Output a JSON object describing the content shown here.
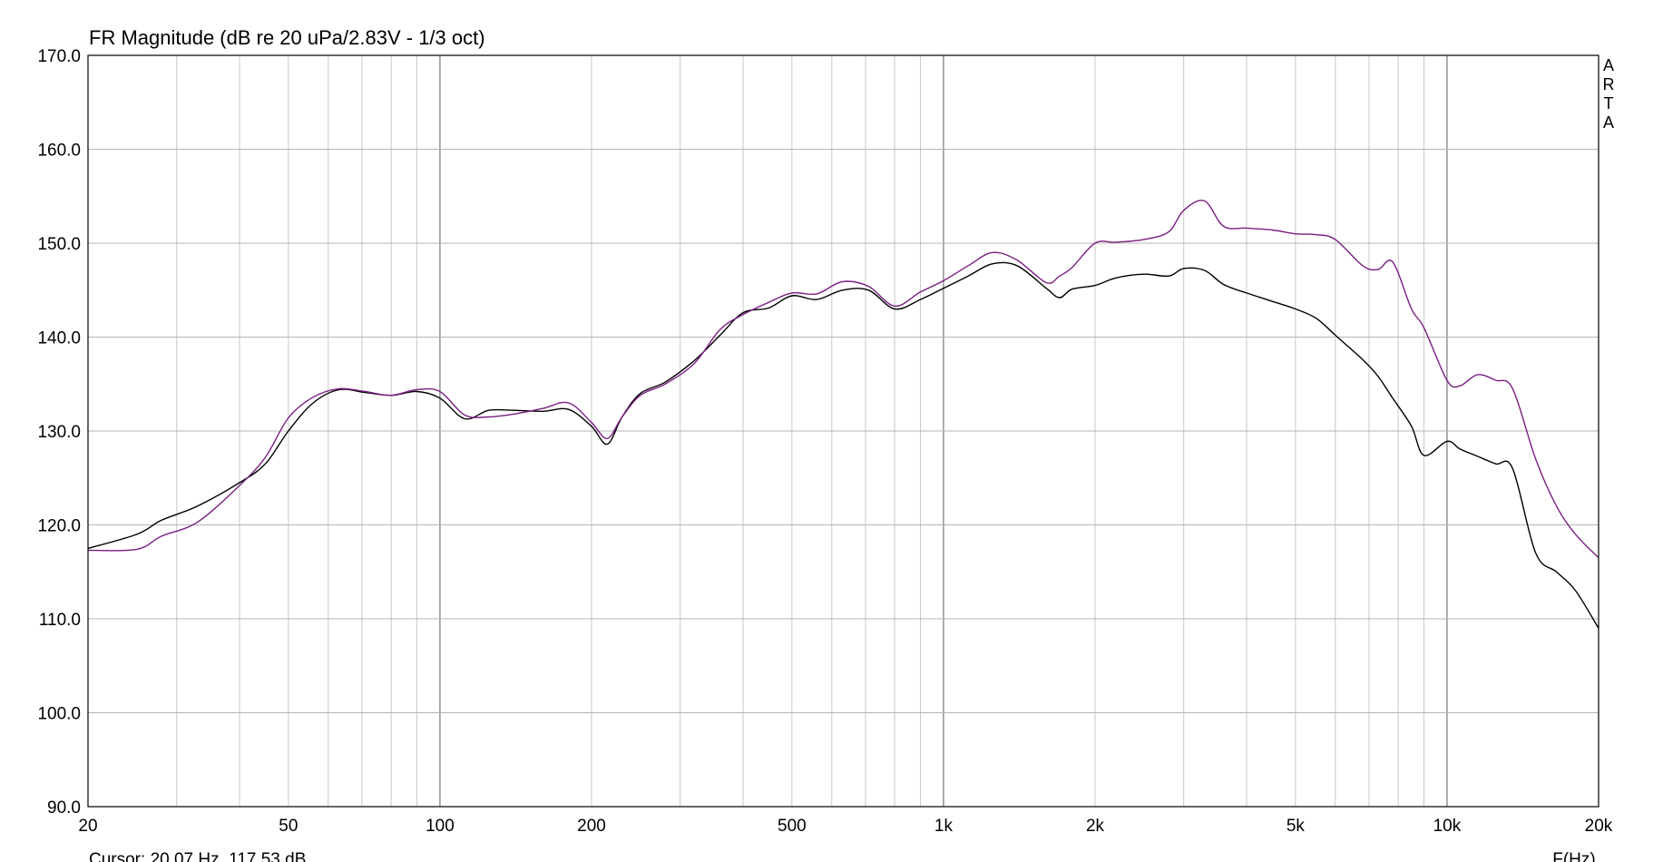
{
  "chart_data": {
    "type": "line",
    "title": "FR Magnitude (dB re 20 uPa/2.83V - 1/3 oct)",
    "xlabel": "F(Hz)",
    "ylabel": "",
    "xscale": "log",
    "xlim": [
      20,
      20000
    ],
    "ylim": [
      90,
      170
    ],
    "grid": true,
    "yticks": [
      {
        "v": 170,
        "label": "170.0"
      },
      {
        "v": 160,
        "label": "160.0"
      },
      {
        "v": 150,
        "label": "150.0"
      },
      {
        "v": 140,
        "label": "140.0"
      },
      {
        "v": 130,
        "label": "130.0"
      },
      {
        "v": 120,
        "label": "120.0"
      },
      {
        "v": 110,
        "label": "110.0"
      },
      {
        "v": 100,
        "label": "100.0"
      },
      {
        "v": 90,
        "label": "90.0"
      }
    ],
    "xticks": [
      {
        "v": 20,
        "label": "20"
      },
      {
        "v": 50,
        "label": "50"
      },
      {
        "v": 100,
        "label": "100"
      },
      {
        "v": 200,
        "label": "200"
      },
      {
        "v": 500,
        "label": "500"
      },
      {
        "v": 1000,
        "label": "1k"
      },
      {
        "v": 2000,
        "label": "2k"
      },
      {
        "v": 5000,
        "label": "5k"
      },
      {
        "v": 10000,
        "label": "10k"
      },
      {
        "v": 20000,
        "label": "20k"
      }
    ],
    "series": [
      {
        "color": "#000000",
        "x": [
          20,
          25,
          28,
          33,
          40,
          45,
          50,
          56,
          63,
          71,
          80,
          90,
          100,
          112,
          125,
          140,
          160,
          180,
          200,
          215,
          230,
          250,
          280,
          320,
          360,
          400,
          450,
          500,
          560,
          630,
          710,
          800,
          900,
          1000,
          1120,
          1250,
          1400,
          1600,
          1700,
          1800,
          2000,
          2200,
          2500,
          2800,
          3000,
          3300,
          3600,
          4000,
          4500,
          5000,
          5500,
          6000,
          6800,
          7300,
          7800,
          8500,
          9000,
          10000,
          10600,
          11500,
          12500,
          13500,
          15000,
          16500,
          18000,
          20000
        ],
        "y": [
          117.5,
          119,
          120.5,
          122,
          124.5,
          126.5,
          130,
          133,
          134.4,
          134.1,
          133.8,
          134.2,
          133.5,
          131.3,
          132.2,
          132.2,
          132.1,
          132.3,
          130.5,
          128.6,
          131.5,
          134.0,
          135.2,
          137.5,
          140.2,
          142.6,
          143.1,
          144.4,
          144.0,
          145.0,
          145.0,
          143.0,
          144.0,
          145.2,
          146.5,
          147.8,
          147.6,
          145.2,
          144.2,
          145.1,
          145.5,
          146.3,
          146.7,
          146.5,
          147.3,
          147.1,
          145.6,
          144.7,
          143.8,
          143.0,
          142.0,
          140.2,
          137.6,
          135.8,
          133.5,
          130.5,
          127.4,
          128.9,
          128.1,
          127.3,
          126.5,
          126.0,
          117.0,
          115.0,
          113.0,
          109.0
        ]
      },
      {
        "color": "#7a1e82",
        "x": [
          20,
          25,
          28,
          33,
          40,
          45,
          50,
          56,
          63,
          71,
          80,
          90,
          100,
          112,
          125,
          140,
          160,
          180,
          200,
          215,
          230,
          250,
          280,
          320,
          360,
          400,
          450,
          500,
          560,
          630,
          710,
          800,
          900,
          1000,
          1120,
          1250,
          1400,
          1600,
          1700,
          1800,
          2000,
          2200,
          2500,
          2800,
          3000,
          3300,
          3600,
          4000,
          4500,
          5000,
          5500,
          6000,
          6800,
          7300,
          7800,
          8500,
          9000,
          10000,
          10600,
          11500,
          12500,
          13500,
          15000,
          16500,
          18000,
          20000
        ],
        "y": [
          117.3,
          117.4,
          118.8,
          120.3,
          124.2,
          127.2,
          131.4,
          133.6,
          134.5,
          134.2,
          133.8,
          134.4,
          134.2,
          131.7,
          131.5,
          131.8,
          132.4,
          133.0,
          130.9,
          129.2,
          131.5,
          133.8,
          135.0,
          137.2,
          140.8,
          142.4,
          143.7,
          144.7,
          144.6,
          145.9,
          145.4,
          143.3,
          144.8,
          146.0,
          147.6,
          149.0,
          148.2,
          145.8,
          146.5,
          147.4,
          150.0,
          150.1,
          150.4,
          151.2,
          153.5,
          154.5,
          151.8,
          151.6,
          151.4,
          151.0,
          150.9,
          150.4,
          147.6,
          147.2,
          148.0,
          143.0,
          141.0,
          135.4,
          134.8,
          136.0,
          135.4,
          134.5,
          127.0,
          122.0,
          119.0,
          116.5
        ]
      }
    ]
  },
  "cursor_text": "Cursor: 20.07 Hz, 117.53 dB",
  "watermark": [
    "A",
    "R",
    "T",
    "A"
  ]
}
